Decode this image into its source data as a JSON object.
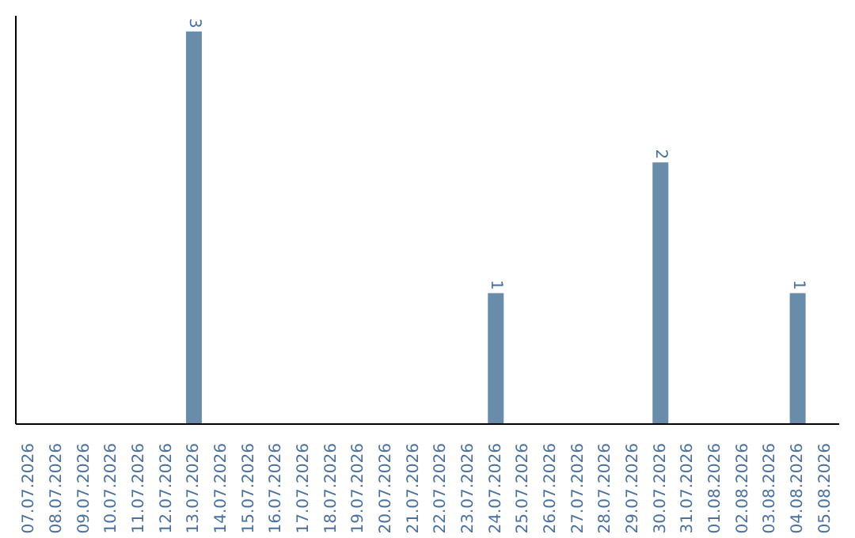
{
  "chart_data": {
    "type": "bar",
    "categories": [
      "07.07.2026",
      "08.07.2026",
      "09.07.2026",
      "10.07.2026",
      "11.07.2026",
      "12.07.2026",
      "13.07.2026",
      "14.07.2026",
      "15.07.2026",
      "16.07.2026",
      "17.07.2026",
      "18.07.2026",
      "19.07.2026",
      "20.07.2026",
      "21.07.2026",
      "22.07.2026",
      "23.07.2026",
      "24.07.2026",
      "25.07.2026",
      "26.07.2026",
      "27.07.2026",
      "28.07.2026",
      "29.07.2026",
      "30.07.2026",
      "31.07.2026",
      "01.08.2026",
      "02.08.2026",
      "03.08.2026",
      "04.08.2026",
      "05.08.2026"
    ],
    "values": [
      0,
      0,
      0,
      0,
      0,
      0,
      3,
      0,
      0,
      0,
      0,
      0,
      0,
      0,
      0,
      0,
      0,
      1,
      0,
      0,
      0,
      0,
      0,
      2,
      0,
      0,
      0,
      0,
      1,
      0
    ],
    "value_labels": [
      null,
      null,
      null,
      null,
      null,
      null,
      "3",
      null,
      null,
      null,
      null,
      null,
      null,
      null,
      null,
      null,
      null,
      "1",
      null,
      null,
      null,
      null,
      null,
      "2",
      null,
      null,
      null,
      null,
      "1",
      null
    ],
    "color": "#6a8cab"
  }
}
